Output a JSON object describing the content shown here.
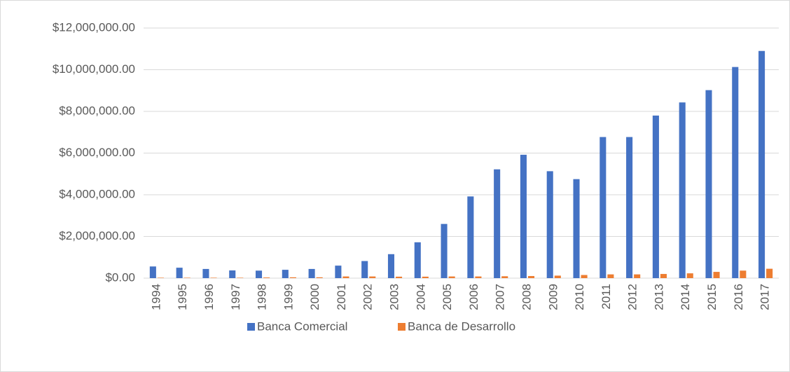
{
  "chart_data": {
    "type": "bar",
    "categories": [
      "1994",
      "1995",
      "1996",
      "1997",
      "1998",
      "1999",
      "2000",
      "2001",
      "2002",
      "2003",
      "2004",
      "2005",
      "2006",
      "2007",
      "2008",
      "2009",
      "2010",
      "2011",
      "2012",
      "2013",
      "2014",
      "2015",
      "2016",
      "2017"
    ],
    "series": [
      {
        "name": "Banca Comercial",
        "color": "#4472c4",
        "values": [
          560000,
          500000,
          440000,
          370000,
          360000,
          400000,
          440000,
          600000,
          820000,
          1150000,
          1720000,
          2600000,
          3920000,
          5220000,
          5920000,
          5130000,
          4750000,
          6770000,
          6770000,
          7800000,
          8430000,
          9020000,
          10130000,
          10900000
        ]
      },
      {
        "name": "Banca de Desarrollo",
        "color": "#ed7d31",
        "values": [
          20000,
          20000,
          20000,
          20000,
          30000,
          40000,
          40000,
          80000,
          80000,
          70000,
          70000,
          80000,
          80000,
          90000,
          100000,
          120000,
          150000,
          180000,
          180000,
          200000,
          230000,
          300000,
          360000,
          450000
        ]
      }
    ],
    "ylim": [
      0,
      12000000
    ],
    "yticks": [
      {
        "value": 0,
        "label": "$0.00"
      },
      {
        "value": 2000000,
        "label": "$2,000,000.00"
      },
      {
        "value": 4000000,
        "label": "$4,000,000.00"
      },
      {
        "value": 6000000,
        "label": "$6,000,000.00"
      },
      {
        "value": 8000000,
        "label": "$8,000,000.00"
      },
      {
        "value": 10000000,
        "label": "$10,000,000.00"
      },
      {
        "value": 12000000,
        "label": "$12,000,000.00"
      }
    ],
    "grid": true,
    "legend": "bottom"
  }
}
